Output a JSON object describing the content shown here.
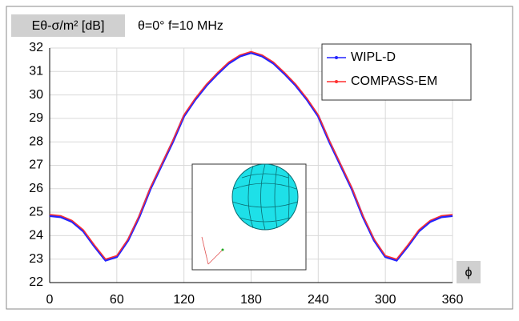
{
  "chart_data": {
    "type": "line",
    "title": "Eθ-σ/m² [dB]",
    "subtitle": "θ=0°  f=10 MHz",
    "x_label": "ϕ",
    "x": [
      0,
      10,
      20,
      30,
      40,
      50,
      60,
      70,
      80,
      90,
      100,
      110,
      120,
      130,
      140,
      150,
      160,
      170,
      180,
      190,
      200,
      210,
      220,
      230,
      240,
      250,
      260,
      270,
      280,
      290,
      300,
      310,
      320,
      330,
      340,
      350,
      360
    ],
    "series": [
      {
        "name": "WIPL-D",
        "color": "#2424ff",
        "values": [
          24.85,
          24.8,
          24.6,
          24.2,
          23.55,
          22.95,
          23.1,
          23.8,
          24.8,
          26.0,
          27.0,
          28.0,
          29.1,
          29.8,
          30.4,
          30.9,
          31.35,
          31.65,
          31.8,
          31.65,
          31.35,
          30.9,
          30.4,
          29.8,
          29.1,
          28.0,
          27.0,
          26.0,
          24.8,
          23.8,
          23.1,
          22.95,
          23.55,
          24.2,
          24.6,
          24.8,
          24.85
        ]
      },
      {
        "name": "COMPASS-EM",
        "color": "#ff3030",
        "values": [
          24.9,
          24.85,
          24.65,
          24.25,
          23.6,
          23.0,
          23.15,
          23.85,
          24.85,
          26.05,
          27.05,
          28.05,
          29.15,
          29.85,
          30.45,
          30.95,
          31.4,
          31.7,
          31.85,
          31.7,
          31.4,
          30.95,
          30.45,
          29.85,
          29.15,
          28.05,
          27.05,
          26.05,
          24.85,
          23.85,
          23.15,
          23.0,
          23.6,
          24.25,
          24.65,
          24.85,
          24.9
        ]
      }
    ],
    "xlim": [
      0,
      360
    ],
    "xticks": [
      0,
      60,
      120,
      180,
      240,
      300,
      360
    ],
    "ylim": [
      22,
      32
    ],
    "yticks": [
      22,
      23,
      24,
      25,
      26,
      27,
      28,
      29,
      30,
      31,
      32
    ],
    "grid": true,
    "legend": "upper right"
  }
}
